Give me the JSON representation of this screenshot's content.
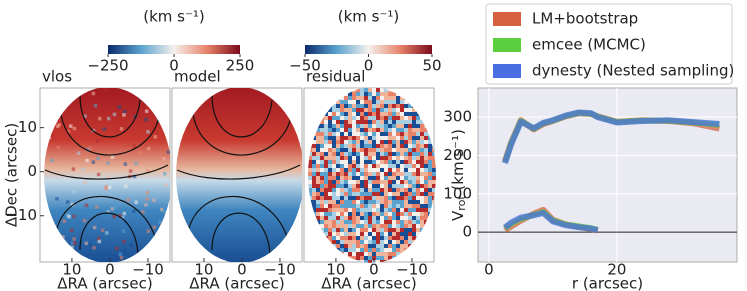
{
  "chart_data": [
    {
      "type": "image",
      "panels": [
        {
          "title": "vlos"
        },
        {
          "title": "model"
        },
        {
          "title": "residual"
        }
      ],
      "colorbars": [
        {
          "label": "(km s⁻¹)",
          "lim": [
            -250,
            250
          ],
          "ticks": [
            {
              "value": -250,
              "label": "−250"
            },
            0,
            250
          ]
        },
        {
          "label": "(km s⁻¹)",
          "lim": [
            -50,
            50
          ],
          "ticks": [
            {
              "value": -50,
              "label": "−50"
            },
            0,
            50
          ]
        }
      ],
      "xlabel": "ΔRA (arcsec)",
      "ylabel": "ΔDec (arcsec)",
      "xlim": [
        18.4,
        -15.8
      ],
      "xticks": [
        10,
        0,
        {
          "value": -10,
          "label": "−10"
        }
      ],
      "ylim": [
        -20.5,
        19
      ],
      "yticks": [
        10,
        0,
        {
          "value": -10,
          "label": "−10"
        }
      ]
    },
    {
      "type": "line",
      "ylabel": {
        "main": "V",
        "sub": "rot",
        "unit": " (km s⁻¹)"
      },
      "xlabel": "r (arcsec)",
      "x": [
        2.5,
        3.5,
        5,
        7,
        8.5,
        10,
        12,
        14,
        16,
        17,
        20,
        24,
        28,
        32,
        36
      ],
      "xlim": [
        -1.7,
        38.75
      ],
      "xticks": [
        0,
        20
      ],
      "ylim": [
        -78,
        376
      ],
      "yticks": [
        0,
        100,
        200,
        300
      ],
      "grid": true,
      "series": [
        {
          "name": "LM+bootstrap",
          "color": "#d6603f",
          "values": [
            185,
            235,
            292,
            268,
            282,
            290,
            302,
            310,
            308,
            302,
            288,
            292,
            290,
            284,
            270
          ],
          "values_lower": [
            5,
            15,
            30,
            48,
            58,
            32,
            20,
            14,
            8,
            4,
            null,
            null,
            null,
            null,
            null
          ]
        },
        {
          "name": "emcee (MCMC)",
          "color": "#5ccf3e",
          "values": [
            182,
            232,
            290,
            270,
            284,
            291,
            303,
            311,
            309,
            301,
            287,
            291,
            291,
            286,
            280
          ],
          "values_lower": [
            10,
            22,
            35,
            45,
            52,
            30,
            20,
            15,
            10,
            6,
            null,
            null,
            null,
            null,
            null
          ]
        },
        {
          "name": "dynesty (Nested sampling)",
          "color": "#4a6fe3",
          "values": [
            180,
            230,
            288,
            271,
            285,
            292,
            304,
            312,
            310,
            300,
            286,
            290,
            292,
            287,
            282
          ],
          "values_lower": [
            12,
            25,
            38,
            44,
            50,
            28,
            18,
            13,
            9,
            5,
            null,
            null,
            null,
            null,
            null
          ]
        }
      ]
    }
  ]
}
